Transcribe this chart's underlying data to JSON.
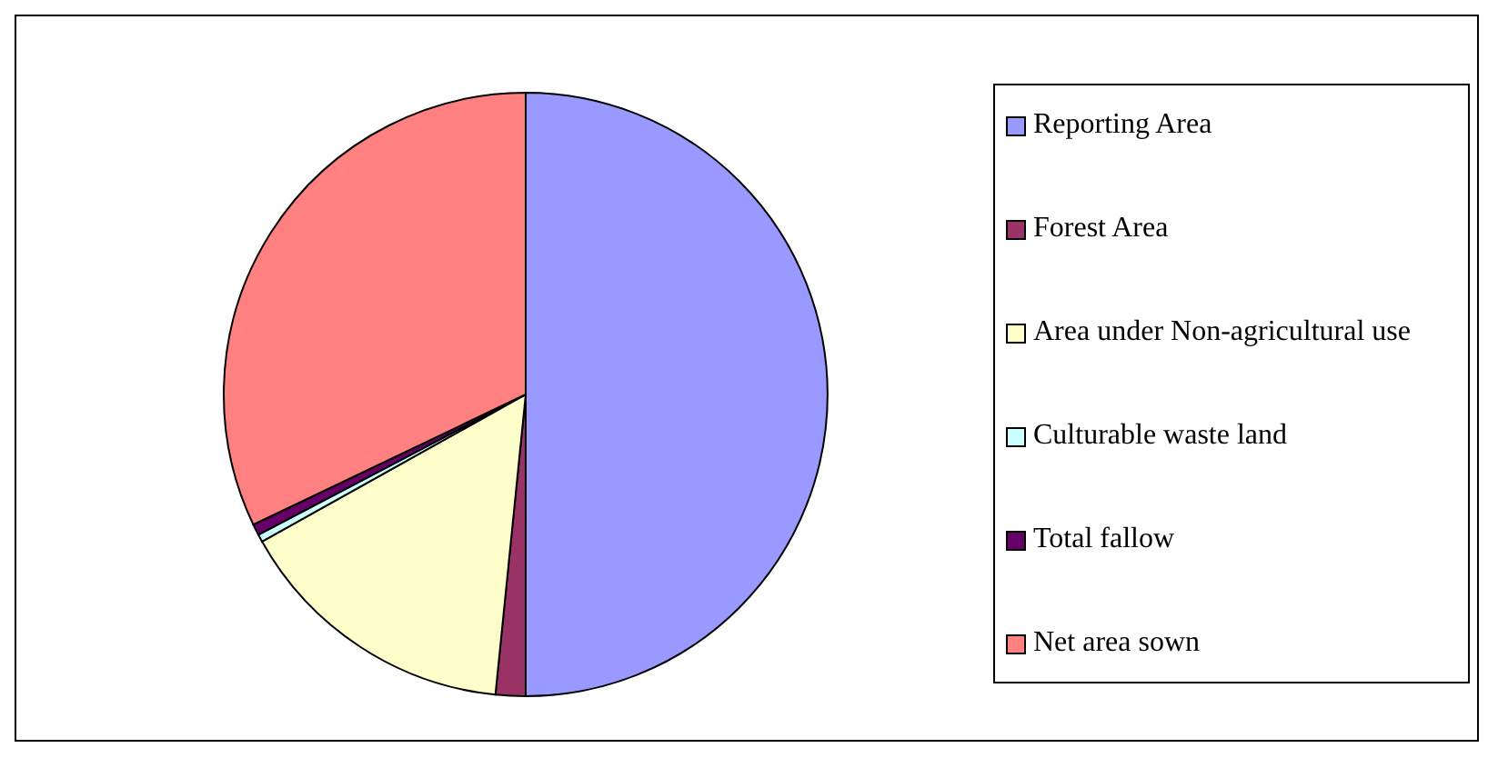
{
  "chart_data": {
    "type": "pie",
    "categories": [
      "Reporting Area",
      "Forest Area",
      "Area under Non-agricultural use",
      "Culturable waste land",
      "Total fallow",
      "Net area sown"
    ],
    "values": [
      50,
      1.6,
      15.3,
      0.4,
      0.6,
      32.1
    ],
    "colors": [
      "#9999ff",
      "#993366",
      "#ffffcc",
      "#ccffff",
      "#660066",
      "#ff8080"
    ],
    "legend": "right"
  }
}
